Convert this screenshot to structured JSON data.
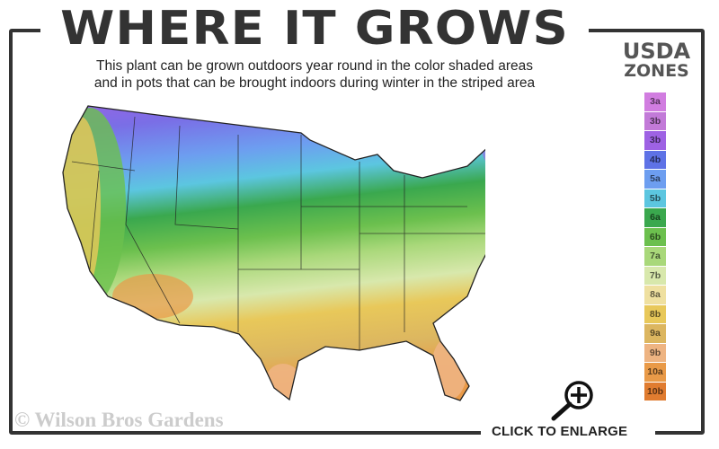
{
  "title": "WHERE IT GROWS",
  "subtitle_line1": "This plant can be grown outdoors year round in the color shaded areas",
  "subtitle_line2": "and in pots that can be brought indoors during winter in the striped area",
  "legend": {
    "title_line1": "USDA",
    "title_line2": "ZONES",
    "zones": [
      {
        "label": "3a",
        "color": "#d17de0"
      },
      {
        "label": "3b",
        "color": "#c27ad8"
      },
      {
        "label": "3b",
        "color": "#9e62e4"
      },
      {
        "label": "4b",
        "color": "#5e72e6"
      },
      {
        "label": "5a",
        "color": "#6d9ef0"
      },
      {
        "label": "5b",
        "color": "#5cc6e0"
      },
      {
        "label": "6a",
        "color": "#3aa84e"
      },
      {
        "label": "6b",
        "color": "#6cc04e"
      },
      {
        "label": "7a",
        "color": "#a9d87a"
      },
      {
        "label": "7b",
        "color": "#d8e8ac"
      },
      {
        "label": "8a",
        "color": "#efe0a0"
      },
      {
        "label": "8b",
        "color": "#e8c85a"
      },
      {
        "label": "9a",
        "color": "#dcb660"
      },
      {
        "label": "9b",
        "color": "#eeb482"
      },
      {
        "label": "10a",
        "color": "#e99a48"
      },
      {
        "label": "10b",
        "color": "#e07c30"
      }
    ]
  },
  "watermark": "© Wilson Bros Gardens",
  "enlarge": {
    "label": "CLICK TO ENLARGE",
    "icon": "zoom-in-icon"
  }
}
